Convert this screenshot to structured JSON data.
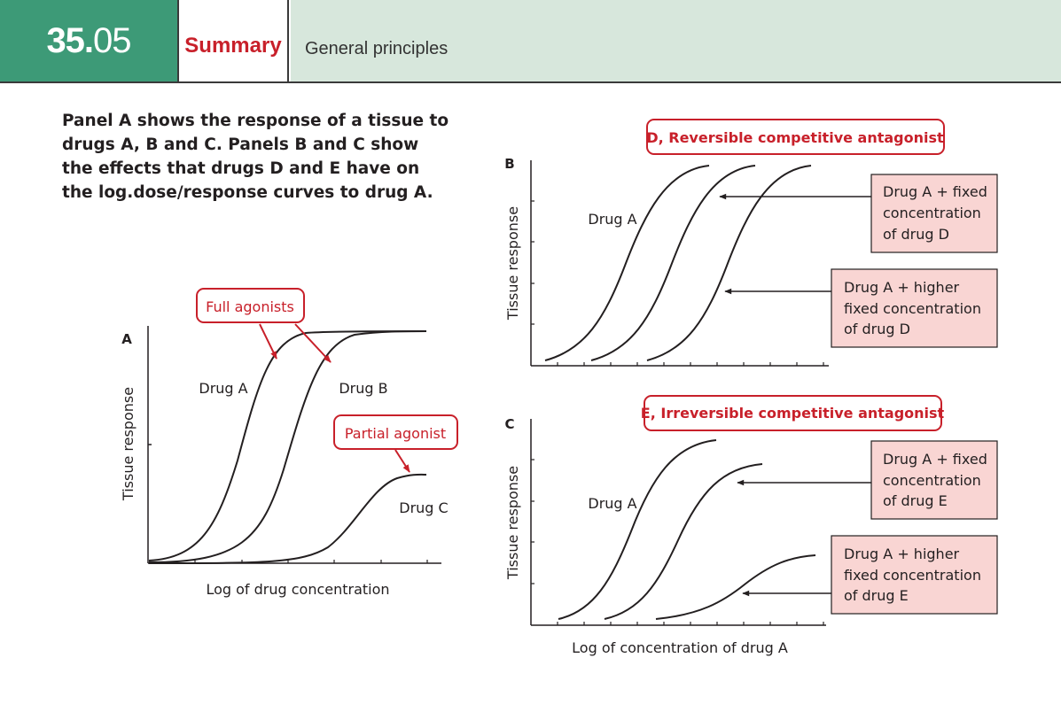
{
  "header": {
    "chapter_number_main": "35.",
    "chapter_number_sub": "05",
    "tab_label": "Summary",
    "section_title": "General principles"
  },
  "intro_text": "Panel A shows the response of a tissue to drugs A, B and C. Panels B and C show the effects that drugs D and E have on the log.dose/response curves to drug A.",
  "colors": {
    "header_green": "#3d9a77",
    "header_light": "#d7e7dc",
    "accent_red": "#c8202a",
    "callout_fill": "#f9d5d3"
  },
  "panel_a": {
    "panel_letter": "A",
    "ylabel": "Tissue response",
    "xlabel": "Log of drug concentration",
    "callout_full_agonists": "Full agonists",
    "callout_partial_agonist": "Partial agonist",
    "curve_labels": {
      "drug_a": "Drug A",
      "drug_b": "Drug B",
      "drug_c": "Drug C"
    }
  },
  "panel_b": {
    "panel_letter": "B",
    "ylabel": "Tissue response",
    "title": "D, Reversible competitive antagonist",
    "curve_label": "Drug A",
    "box_fixed_lines": [
      "Drug A + fixed",
      "concentration",
      "of drug D"
    ],
    "box_higher_lines": [
      "Drug A + higher",
      "fixed concentration",
      "of drug D"
    ]
  },
  "panel_c": {
    "panel_letter": "C",
    "ylabel": "Tissue response",
    "title": "E, Irreversible competitive antagonist",
    "curve_label": "Drug A",
    "xlabel": "Log of concentration of drug A",
    "box_fixed_lines": [
      "Drug A + fixed",
      "concentration",
      "of drug E"
    ],
    "box_higher_lines": [
      "Drug A + higher",
      "fixed concentration",
      "of drug E"
    ]
  }
}
